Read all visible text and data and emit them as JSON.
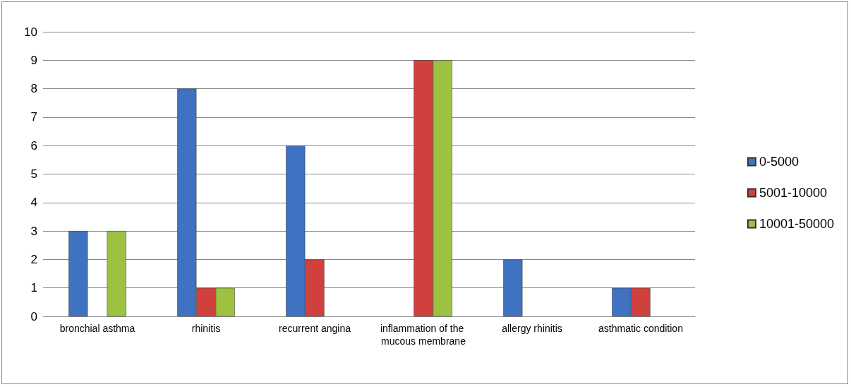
{
  "chart_data": {
    "type": "bar",
    "categories": [
      "bronchial asthma",
      "rhinitis",
      "recurrent angina",
      "inflammation of the mucous membrane",
      "allergy rhinitis",
      "asthmatic condition"
    ],
    "series": [
      {
        "name": "0-5000",
        "color": "#3f72c0",
        "values": [
          3,
          8,
          6,
          null,
          2,
          1
        ]
      },
      {
        "name": "5001-10000",
        "color": "#d0413d",
        "values": [
          null,
          1,
          2,
          9,
          null,
          1
        ]
      },
      {
        "name": "10001-50000",
        "color": "#9cc23f",
        "values": [
          3,
          1,
          null,
          9,
          null,
          null
        ]
      }
    ],
    "ylim": [
      0,
      10
    ],
    "yticks": [
      0,
      1,
      2,
      3,
      4,
      5,
      6,
      7,
      8,
      9,
      10
    ],
    "grid": "y",
    "legend": "right"
  }
}
